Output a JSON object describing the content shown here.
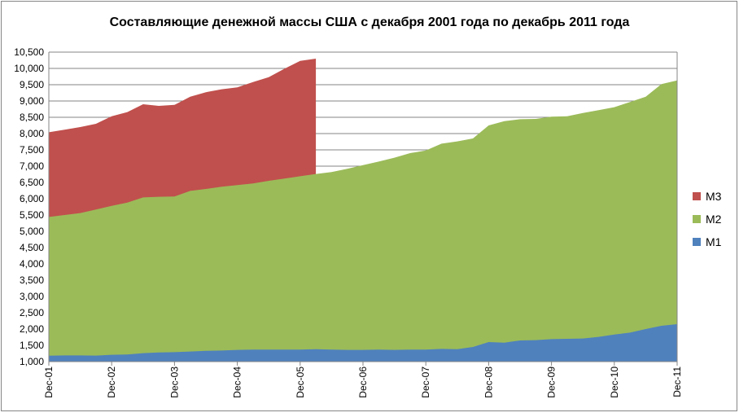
{
  "chart_data": {
    "type": "area",
    "title": "Составляющие денежной массы США с декабря 2001 года по декабрь 2011 года",
    "categories": [
      "Dec-01",
      null,
      null,
      null,
      "Dec-02",
      null,
      null,
      null,
      "Dec-03",
      null,
      null,
      null,
      "Dec-04",
      null,
      null,
      null,
      "Dec-05",
      null,
      null,
      null,
      "Dec-06",
      null,
      null,
      null,
      "Dec-07",
      null,
      null,
      null,
      "Dec-08",
      null,
      null,
      null,
      "Dec-09",
      null,
      null,
      null,
      "Dec-10",
      null,
      null,
      null,
      "Dec-11"
    ],
    "series": [
      {
        "name": "M3",
        "color": "#c0504d",
        "values": [
          8040,
          8120,
          8200,
          8300,
          8530,
          8660,
          8900,
          8850,
          8880,
          9130,
          9270,
          9360,
          9420,
          9580,
          9730,
          9990,
          10230,
          10300,
          null,
          null,
          null,
          null,
          null,
          null,
          null,
          null,
          null,
          null,
          null,
          null,
          null,
          null,
          null,
          null,
          null,
          null,
          null,
          null,
          null,
          null,
          null
        ]
      },
      {
        "name": "M2",
        "color": "#9bbb59",
        "values": [
          5440,
          5500,
          5560,
          5670,
          5780,
          5880,
          6040,
          6060,
          6070,
          6240,
          6300,
          6370,
          6420,
          6470,
          6550,
          6620,
          6690,
          6760,
          6820,
          6920,
          7030,
          7140,
          7260,
          7400,
          7480,
          7690,
          7760,
          7850,
          8250,
          8380,
          8440,
          8450,
          8520,
          8530,
          8630,
          8720,
          8810,
          8970,
          9130,
          9520,
          9630
        ]
      },
      {
        "name": "M1",
        "color": "#4f81bd",
        "values": [
          1180,
          1190,
          1190,
          1185,
          1210,
          1220,
          1260,
          1280,
          1290,
          1310,
          1330,
          1340,
          1360,
          1370,
          1370,
          1370,
          1370,
          1380,
          1370,
          1360,
          1360,
          1370,
          1360,
          1370,
          1370,
          1390,
          1380,
          1450,
          1600,
          1580,
          1650,
          1660,
          1690,
          1700,
          1710,
          1760,
          1830,
          1890,
          2000,
          2100,
          2150
        ]
      }
    ],
    "ylim": [
      1000,
      10500
    ],
    "yticks": [
      {
        "value": 1000,
        "label": "1,000"
      },
      {
        "value": 1500,
        "label": "1,500"
      },
      {
        "value": 2000,
        "label": "2,000"
      },
      {
        "value": 2500,
        "label": "2,500"
      },
      {
        "value": 3000,
        "label": "3,000"
      },
      {
        "value": 3500,
        "label": "3,500"
      },
      {
        "value": 4000,
        "label": "4,000"
      },
      {
        "value": 4500,
        "label": "4,500"
      },
      {
        "value": 5000,
        "label": "5,000"
      },
      {
        "value": 5500,
        "label": "5,500"
      },
      {
        "value": 6000,
        "label": "6,000"
      },
      {
        "value": 6500,
        "label": "6,500"
      },
      {
        "value": 7000,
        "label": "7,000"
      },
      {
        "value": 7500,
        "label": "7,500"
      },
      {
        "value": 8000,
        "label": "8,000"
      },
      {
        "value": 8500,
        "label": "8,500"
      },
      {
        "value": 9000,
        "label": "9,000"
      },
      {
        "value": 9500,
        "label": "9,500"
      },
      {
        "value": 10000,
        "label": "10,000"
      },
      {
        "value": 10500,
        "label": "10,500"
      }
    ],
    "grid": true,
    "legend": "right"
  }
}
